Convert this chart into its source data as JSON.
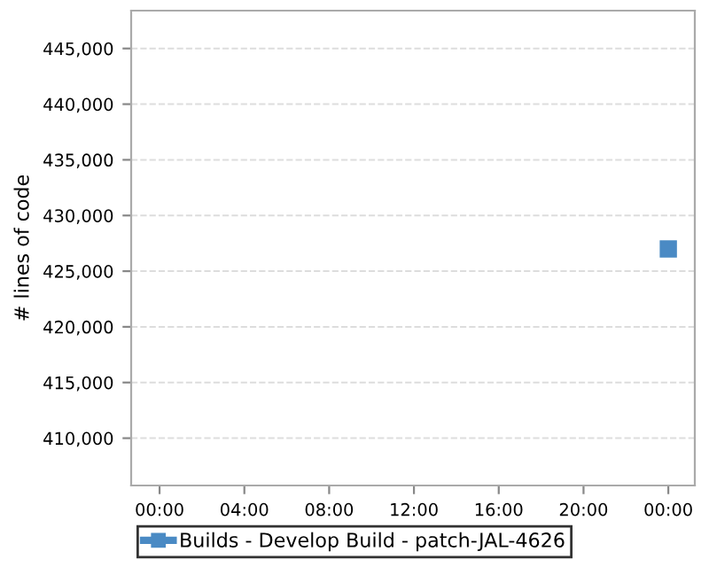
{
  "chart_data": {
    "type": "scatter",
    "ylabel": "# lines of code",
    "x": [
      24
    ],
    "series": [
      {
        "name": "Builds - Develop Build - patch-JAL-4626",
        "color": "#4a8ac4",
        "values": [
          427000
        ]
      }
    ],
    "xlim": [
      -1.34,
      25.25
    ],
    "xticks": [
      {
        "value": 0,
        "label": "00:00"
      },
      {
        "value": 4,
        "label": "04:00"
      },
      {
        "value": 8,
        "label": "08:00"
      },
      {
        "value": 12,
        "label": "12:00"
      },
      {
        "value": 16,
        "label": "16:00"
      },
      {
        "value": 20,
        "label": "20:00"
      },
      {
        "value": 24,
        "label": "00:00"
      }
    ],
    "ylim": [
      405750,
      448400
    ],
    "yticks": [
      {
        "value": 410000,
        "label": "410,000"
      },
      {
        "value": 415000,
        "label": "415,000"
      },
      {
        "value": 420000,
        "label": "420,000"
      },
      {
        "value": 425000,
        "label": "425,000"
      },
      {
        "value": 430000,
        "label": "430,000"
      },
      {
        "value": 435000,
        "label": "435,000"
      },
      {
        "value": 440000,
        "label": "440,000"
      },
      {
        "value": 445000,
        "label": "445,000"
      }
    ],
    "grid": "y",
    "legend": "bottom",
    "marker": "square"
  }
}
